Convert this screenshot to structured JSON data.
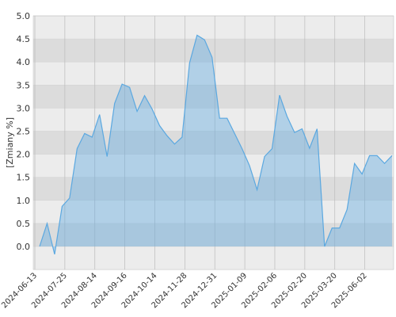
{
  "chart_data": {
    "type": "area",
    "y_label": "[Zmiany %]",
    "categories": [
      "2024-06-13",
      null,
      null,
      null,
      "2024-07-25",
      null,
      null,
      null,
      "2024-08-14",
      null,
      null,
      null,
      "2024-09-16",
      null,
      null,
      null,
      "2024-10-14",
      null,
      null,
      null,
      "2024-11-28",
      null,
      null,
      null,
      "2024-12-31",
      null,
      null,
      null,
      "2025-01-09",
      null,
      null,
      null,
      "2025-02-06",
      null,
      null,
      null,
      "2025-02-20",
      null,
      null,
      null,
      "2025-03-20",
      null,
      null,
      null,
      "2025-06-02",
      null,
      null,
      null
    ],
    "values": [
      0.0,
      0.5,
      -0.17,
      0.87,
      1.05,
      2.12,
      2.45,
      2.37,
      2.86,
      1.95,
      3.1,
      3.52,
      3.45,
      2.93,
      3.27,
      2.98,
      2.62,
      2.4,
      2.22,
      2.37,
      3.98,
      4.58,
      4.48,
      4.1,
      2.78,
      2.78,
      2.45,
      2.12,
      1.75,
      1.23,
      1.95,
      2.12,
      3.28,
      2.82,
      2.47,
      2.55,
      2.13,
      2.55,
      0.0,
      0.4,
      0.4,
      0.8,
      1.8,
      1.57,
      1.97,
      1.97,
      1.8,
      1.97
    ],
    "color": "#5ba8e0",
    "ylim": [
      -0.5,
      5.0
    ],
    "yticks": [
      {
        "value": 0,
        "label": "0.0"
      },
      0.5,
      {
        "value": 1,
        "label": "1.0"
      },
      1.5,
      {
        "value": 2,
        "label": "2.0"
      },
      2.5,
      {
        "value": 3,
        "label": "3.0"
      },
      3.5,
      {
        "value": 4,
        "label": "4.0"
      },
      4.5,
      {
        "value": 5,
        "label": "5.0"
      }
    ],
    "grid": true
  }
}
